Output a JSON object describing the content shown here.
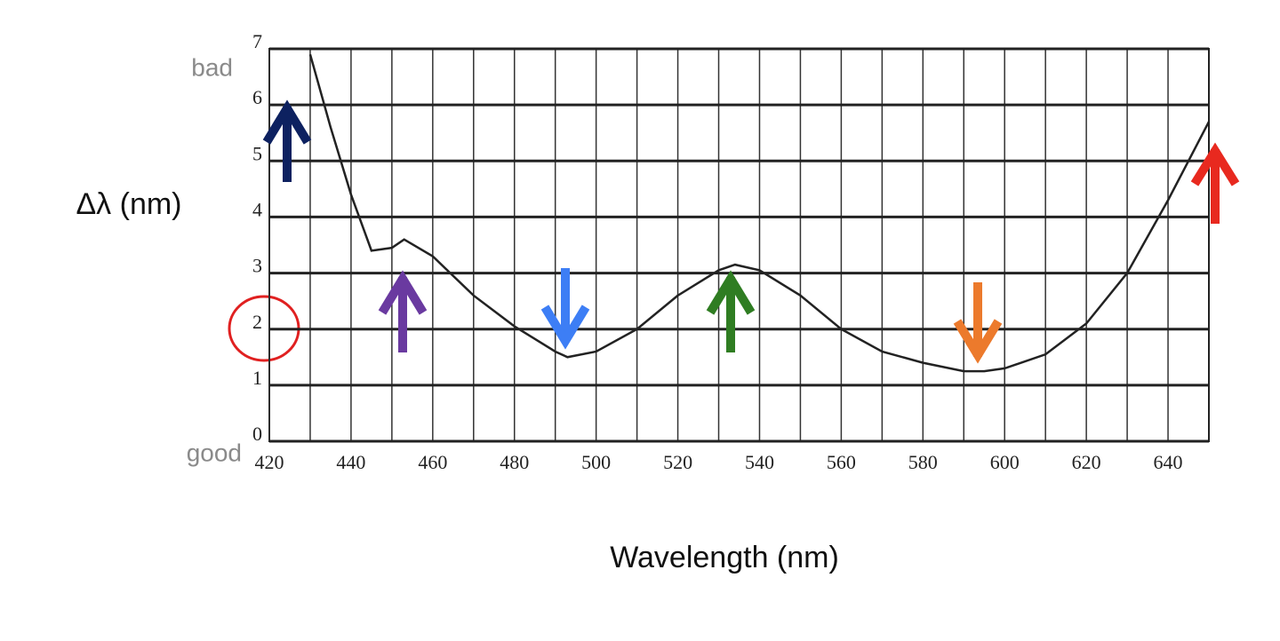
{
  "chart_data": {
    "type": "line",
    "xlabel": "Wavelength (nm)",
    "ylabel": "Δλ (nm)",
    "annotations": {
      "top": "bad",
      "bottom": "good"
    },
    "x": [
      430,
      435,
      440,
      445,
      450,
      453,
      460,
      470,
      480,
      490,
      493,
      500,
      510,
      520,
      530,
      534,
      540,
      550,
      560,
      570,
      580,
      590,
      595,
      600,
      610,
      620,
      630,
      640,
      645,
      650
    ],
    "series": [
      {
        "color": "#222222",
        "values": [
          6.9,
          5.6,
          4.4,
          3.4,
          3.45,
          3.6,
          3.3,
          2.6,
          2.05,
          1.6,
          1.5,
          1.6,
          2.0,
          2.6,
          3.05,
          3.15,
          3.05,
          2.6,
          2.0,
          1.6,
          1.4,
          1.25,
          1.25,
          1.3,
          1.55,
          2.1,
          3.0,
          4.3,
          5.0,
          5.7
        ]
      }
    ],
    "xlim": [
      420,
      650
    ],
    "ylim": [
      0,
      7
    ],
    "xticks": [
      420,
      440,
      460,
      480,
      500,
      520,
      540,
      560,
      580,
      600,
      620,
      640
    ],
    "yticks": [
      0,
      1,
      2,
      3,
      4,
      5,
      6,
      7
    ],
    "grid": true
  }
}
